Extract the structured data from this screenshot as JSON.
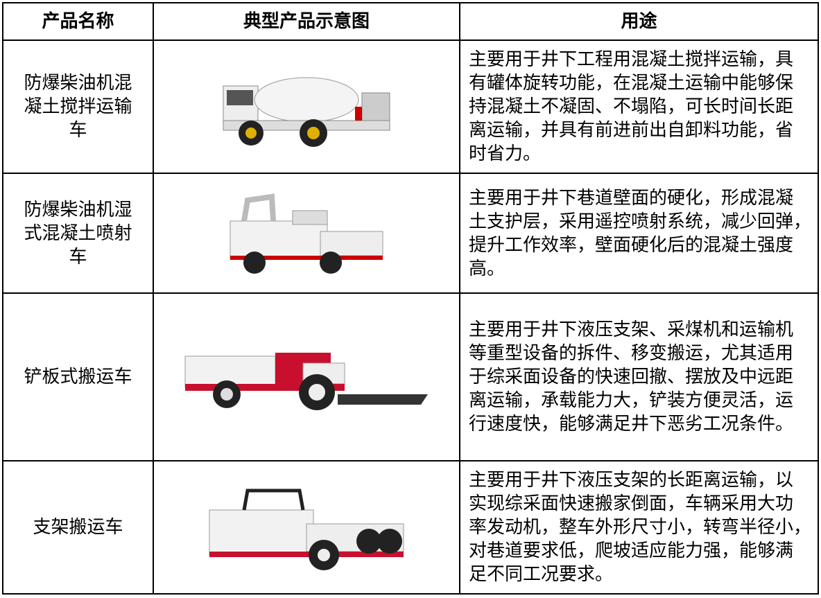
{
  "table": {
    "header": [
      "产品名称",
      "典型产品示意图",
      "用途"
    ],
    "rows": [
      {
        "name": [
          "防爆柴油机混",
          "凝土搅拌运输",
          "车"
        ],
        "use": [
          "主要用于井下工程用混凝土搅拌运输，具",
          "有罐体旋转功能，在混凝土运输中能够保",
          "持混凝土不凝固、不塌陷，可长时间长距",
          "离运输，并具有前进前出自卸料功能，省",
          "时省力。"
        ]
      },
      {
        "name": [
          "防爆柴油机湿",
          "式混凝土喷射",
          "车"
        ],
        "use": [
          "主要用于井下巷道壁面的硬化，形成混凝",
          "土支护层，采用遥控喷射系统，减少回弹，",
          "提升工作效率，壁面硬化后的混凝土强度",
          "高。"
        ]
      },
      {
        "name": [
          "铲板式搬运车"
        ],
        "use": [
          "主要用于井下液压支架、采煤机和运输机",
          "等重型设备的拆件、移变搬运，尤其适用",
          "于综采面设备的快速回撤、摆放及中远距",
          "离运输，承载能力大，铲装方便灵活，运",
          "行速度快，能够满足井下恶劣工况条件。"
        ]
      },
      {
        "name": [
          "支架搬运车"
        ],
        "use": [
          "主要用于井下液压支架的长距离运输，以",
          "实现综采面快速搬家倒面，车辆采用大功",
          "率发动机，整车外形尺寸小，转弯半径小，",
          "对巷道要求低，爬坡适应能力强，能够满",
          "足不同工况要求。"
        ]
      }
    ]
  }
}
